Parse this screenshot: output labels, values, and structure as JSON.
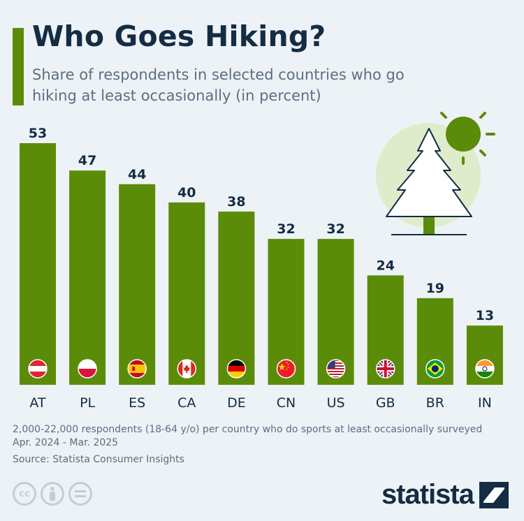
{
  "header": {
    "title": "Who Goes Hiking?",
    "subtitle": "Share of respondents in selected countries who go hiking at least occasionally (in percent)"
  },
  "colors": {
    "bar": "#5b8c09",
    "title": "#142c44",
    "text": "#5c6e80",
    "background": "#edf2f6"
  },
  "chart_data": {
    "type": "bar",
    "categories": [
      "AT",
      "PL",
      "ES",
      "CA",
      "DE",
      "CN",
      "US",
      "GB",
      "BR",
      "IN"
    ],
    "values": [
      53,
      47,
      44,
      40,
      38,
      32,
      32,
      24,
      19,
      13
    ],
    "ylim": [
      0,
      53
    ],
    "grid": false,
    "flags": [
      "austria-flag-icon",
      "poland-flag-icon",
      "spain-flag-icon",
      "canada-flag-icon",
      "germany-flag-icon",
      "china-flag-icon",
      "usa-flag-icon",
      "uk-flag-icon",
      "brazil-flag-icon",
      "india-flag-icon"
    ]
  },
  "footer": {
    "note": "2,000-22,000 respondents (18-64 y/o) per country who do sports at least occasionally surveyed Apr. 2024 - Mar. 2025",
    "source": "Source: Statista Consumer Insights",
    "license_icons": [
      "cc-icon",
      "attribution-icon",
      "no-derivatives-icon"
    ],
    "brand": "statista"
  }
}
